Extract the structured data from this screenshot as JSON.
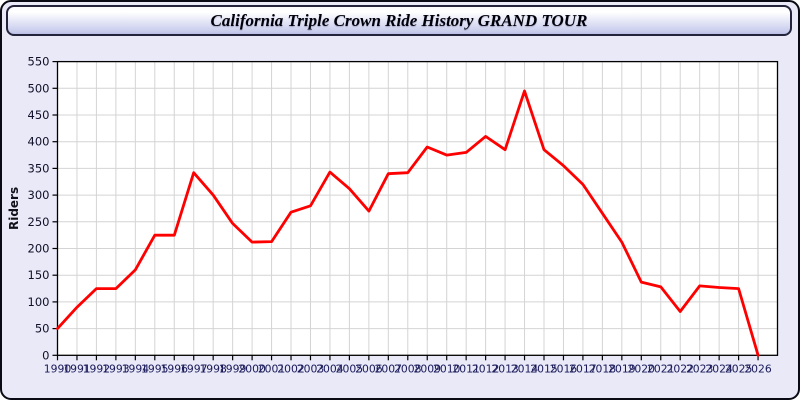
{
  "window": {
    "title": "California Triple Crown Ride History GRAND TOUR"
  },
  "colors": {
    "line": "#ff0000",
    "page_background": "#e9e9f8",
    "plot_background": "#ffffff",
    "grid": "#d4d4d4",
    "axis": "#000000",
    "x_tick_label": "#1a1a5a",
    "y_tick_label": "#101028",
    "title_text": "#00000a"
  },
  "chart_data": {
    "type": "line",
    "title": "California Triple Crown Ride History GRAND TOUR",
    "xlabel": "",
    "ylabel": "Riders",
    "ylim": [
      0,
      550
    ],
    "ytick_step": 50,
    "ytick_labels": [
      "0",
      "50",
      "100",
      "150",
      "200",
      "250",
      "300",
      "350",
      "400",
      "450",
      "500",
      "550"
    ],
    "grid": true,
    "legend": "none",
    "x": [
      1990,
      1991,
      1992,
      1993,
      1994,
      1995,
      1996,
      1997,
      1998,
      1999,
      2000,
      2001,
      2002,
      2003,
      2004,
      2005,
      2006,
      2007,
      2008,
      2009,
      2010,
      2011,
      2012,
      2013,
      2014,
      2015,
      2016,
      2017,
      2018,
      2019,
      2020,
      2021,
      2022,
      2023,
      2024,
      2025,
      2026
    ],
    "series": [
      {
        "name": "Riders",
        "values": [
          50,
          90,
          125,
          125,
          160,
          225,
          225,
          342,
          300,
          247,
          212,
          213,
          268,
          280,
          343,
          312,
          270,
          340,
          342,
          390,
          375,
          380,
          410,
          385,
          495,
          385,
          355,
          320,
          266,
          212,
          137,
          128,
          82,
          130,
          127,
          125,
          0
        ]
      }
    ]
  }
}
